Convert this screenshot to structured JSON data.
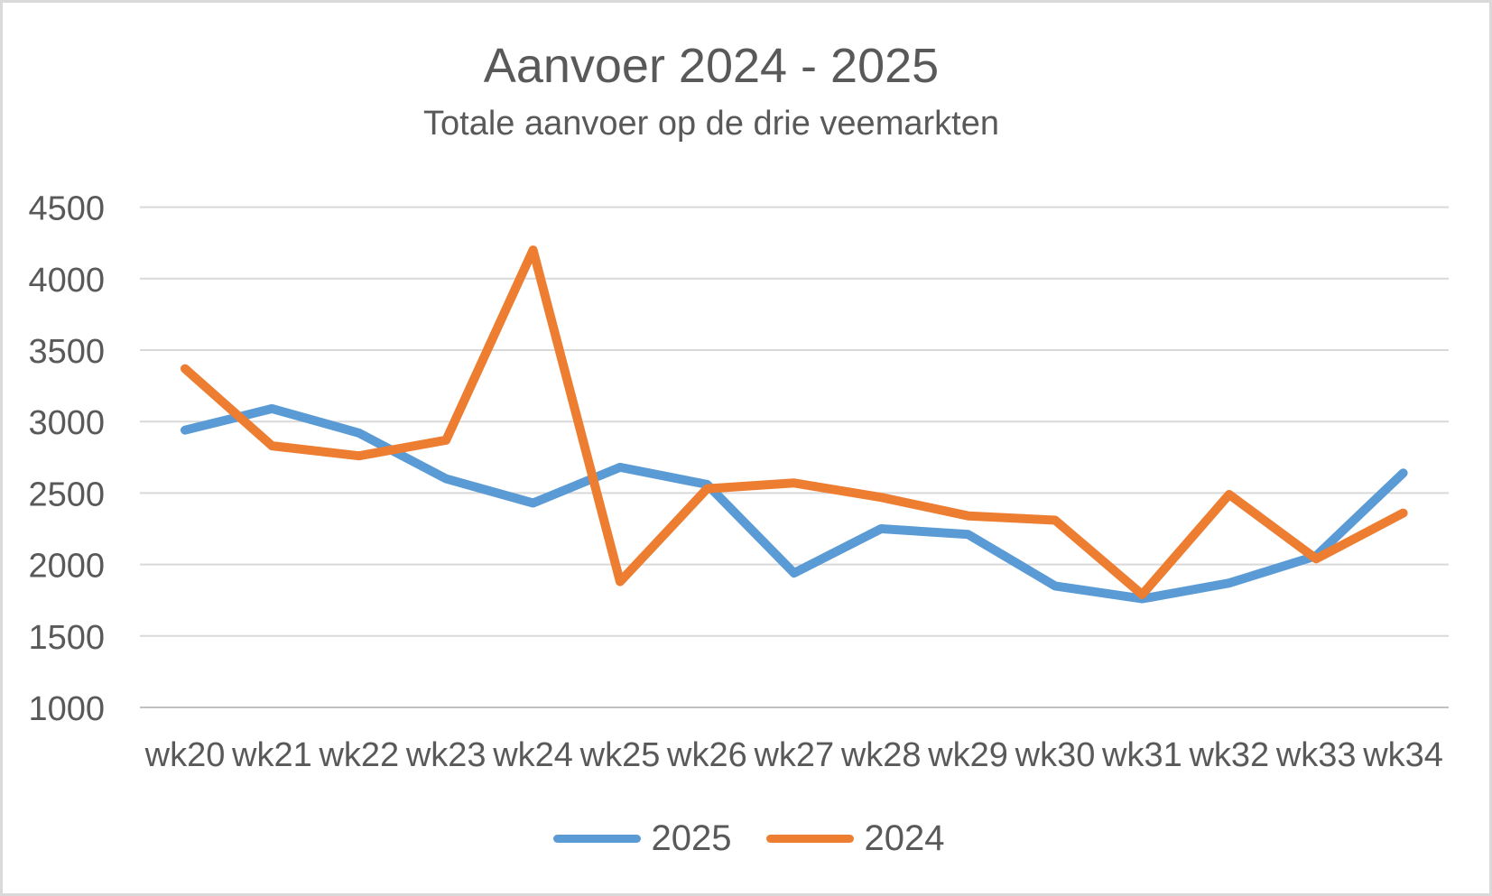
{
  "chart_data": {
    "type": "line",
    "title": "Aanvoer 2024 - 2025",
    "subtitle": "Totale aanvoer op de drie veemarkten",
    "categories": [
      "wk20",
      "wk21",
      "wk22",
      "wk23",
      "wk24",
      "wk25",
      "wk26",
      "wk27",
      "wk28",
      "wk29",
      "wk30",
      "wk31",
      "wk32",
      "wk33",
      "wk34"
    ],
    "series": [
      {
        "name": "2025",
        "color": "#5B9BD5",
        "values": [
          2940,
          3090,
          2920,
          2600,
          2430,
          2680,
          2560,
          1940,
          2250,
          2210,
          1850,
          1760,
          1870,
          2060,
          2640
        ]
      },
      {
        "name": "2024",
        "color": "#ED7D31",
        "values": [
          3370,
          2830,
          2760,
          2870,
          4200,
          1880,
          2530,
          2570,
          2470,
          2340,
          2310,
          1790,
          2490,
          2040,
          2360
        ]
      }
    ],
    "y_axis": {
      "min": 1000,
      "max": 4500,
      "step": 500,
      "ticks": [
        4500,
        4000,
        3500,
        3000,
        2500,
        2000,
        1500,
        1000
      ]
    },
    "x_axis": {
      "label_prefix": "wk"
    },
    "grid": true,
    "legend_position": "bottom",
    "colors": {
      "text": "#595959",
      "gridline": "#D9D9D9",
      "axis_line": "#C1C1C1",
      "background": "#FFFFFF",
      "frame_border": "#D9D9D9"
    }
  }
}
